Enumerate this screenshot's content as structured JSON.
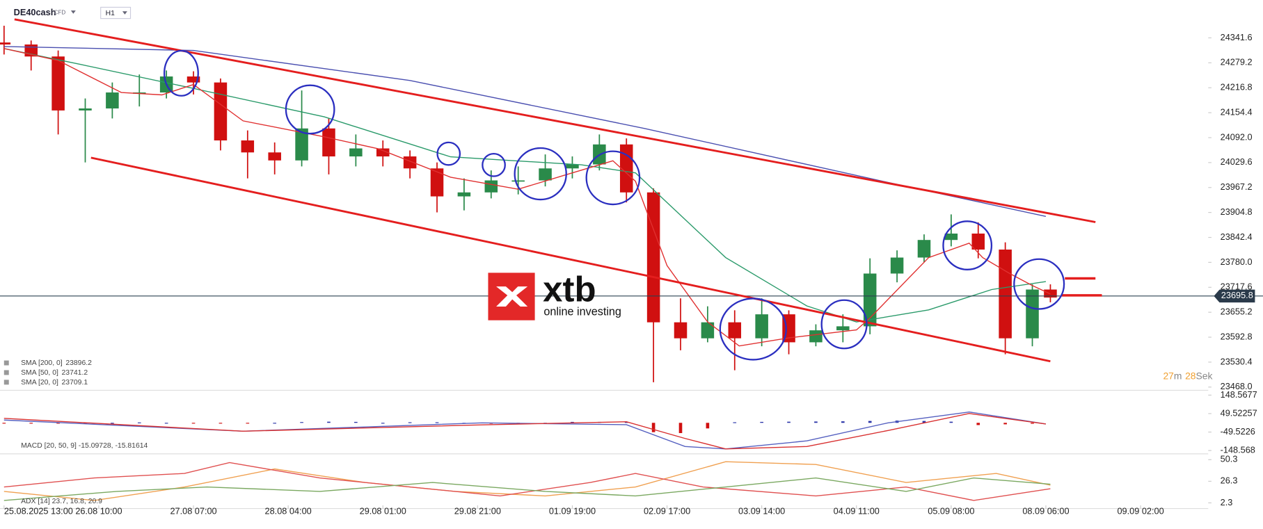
{
  "header": {
    "symbol": "DE40cash",
    "instrument_type": "CFD",
    "timeframe": "H1"
  },
  "logo": {
    "brand": "xtb",
    "tagline": "online investing"
  },
  "countdown": {
    "minutes": 27,
    "minutes_unit": "m",
    "seconds": 28,
    "seconds_unit": "Sek"
  },
  "chart_data": [
    {
      "type": "candlestick",
      "x": [
        0,
        6,
        12,
        18,
        24,
        30,
        36,
        42,
        48,
        54,
        60,
        66,
        72,
        78,
        84,
        90,
        96,
        102,
        108,
        114,
        120,
        126,
        132,
        138,
        144,
        150,
        156,
        162,
        168,
        174,
        180,
        186,
        192,
        198,
        204,
        210,
        216,
        222,
        228,
        232
      ],
      "open": [
        24330,
        24325,
        24295,
        24160,
        24165,
        24205,
        24205,
        24245,
        24230,
        24085,
        24055,
        24035,
        24115,
        24045,
        24065,
        24045,
        24015,
        23945,
        23955,
        23985,
        23985,
        24015,
        24025,
        24075,
        23955,
        23630,
        23590,
        23630,
        23590,
        23650,
        23580,
        23610,
        23620,
        23752,
        23792,
        23836,
        23852,
        23812,
        23590,
        23712
      ],
      "high": [
        24372,
        24335,
        24310,
        24190,
        24230,
        24250,
        24260,
        24258,
        24240,
        24110,
        24080,
        24210,
        24140,
        24100,
        24085,
        24060,
        24030,
        23990,
        24010,
        24020,
        24050,
        24045,
        24100,
        24090,
        23965,
        23690,
        23670,
        23660,
        23690,
        23660,
        23625,
        23650,
        23790,
        23810,
        23850,
        23900,
        23880,
        23830,
        23725,
        23725
      ],
      "low": [
        24300,
        24260,
        24100,
        24030,
        24140,
        24170,
        24190,
        24200,
        24060,
        23990,
        24000,
        24020,
        24000,
        24020,
        24020,
        23990,
        23905,
        23910,
        23940,
        23950,
        23970,
        23990,
        24010,
        23930,
        23480,
        23560,
        23580,
        23510,
        23570,
        23550,
        23570,
        23580,
        23600,
        23730,
        23780,
        23820,
        23790,
        23550,
        23570,
        23680
      ],
      "close": [
        24325,
        24295,
        24160,
        24165,
        24205,
        24205,
        24245,
        24230,
        24085,
        24055,
        24035,
        24115,
        24045,
        24065,
        24045,
        24015,
        23945,
        23955,
        23985,
        23985,
        24015,
        24025,
        24075,
        23955,
        23630,
        23590,
        23630,
        23590,
        23650,
        23580,
        23610,
        23620,
        23752,
        23792,
        23836,
        23852,
        23812,
        23590,
        23712,
        23692
      ],
      "up_color": "#2a8a4a",
      "down_color": "#d01010",
      "last_price": 23695.8,
      "xlim": [
        -0.9,
        267
      ],
      "ylim": [
        23460,
        24392
      ],
      "yticks": [
        24341.6,
        24279.2,
        24216.8,
        24154.4,
        {
          "value": 24092.0,
          "label": "24092.0"
        },
        24029.6,
        23967.2,
        23904.8,
        23842.4,
        {
          "value": 23780.0,
          "label": "23780.0"
        },
        23717.6,
        23655.2,
        23592.8,
        23530.4,
        {
          "value": 23468.0,
          "label": "23468.0"
        }
      ],
      "xticks": [
        {
          "value": 0,
          "label": "25.08.2025  13:00"
        },
        {
          "value": 21,
          "label": "26.08  10:00"
        },
        {
          "value": 42,
          "label": "27.08  07:00"
        },
        {
          "value": 63,
          "label": "28.08  04:00"
        },
        {
          "value": 84,
          "label": "29.08  01:00"
        },
        {
          "value": 105,
          "label": "29.08  21:00"
        },
        {
          "value": 126,
          "label": "01.09  19:00"
        },
        {
          "value": 147,
          "label": "02.09  17:00"
        },
        {
          "value": 168,
          "label": "03.09  14:00"
        },
        {
          "value": 189,
          "label": "04.09  11:00"
        },
        {
          "value": 210,
          "label": "05.09  08:00"
        },
        {
          "value": 231,
          "label": "08.09  06:00"
        },
        {
          "value": 252,
          "label": "09.09  02:00"
        }
      ],
      "series": [
        {
          "name": "SMA [200,  0]",
          "last": 23896.2,
          "color": "#4a4fb0",
          "x": [
            0,
            42,
            90,
            142,
            196,
            231
          ],
          "values": [
            24320,
            24310,
            24235,
            24115,
            23980,
            23895
          ]
        },
        {
          "name": "SMA [50,  0]",
          "last": 23741.2,
          "color": "#2a9a6a",
          "x": [
            0,
            17,
            42,
            71,
            99,
            128,
            140,
            160,
            178,
            189,
            205,
            219,
            231
          ],
          "values": [
            24315,
            24275,
            24215,
            24144,
            24044,
            24024,
            24004,
            23792,
            23671,
            23631,
            23661,
            23712,
            23732
          ]
        },
        {
          "name": "SMA [20,  0]",
          "last": 23709.1,
          "color": "#e03030",
          "x": [
            0,
            12,
            26,
            35,
            42,
            53,
            71,
            83,
            99,
            114,
            124,
            135,
            140,
            147,
            156,
            163,
            174,
            189,
            192,
            205,
            214,
            217,
            223,
            228,
            232
          ],
          "values": [
            24315,
            24285,
            24205,
            24199,
            24225,
            24134,
            24094,
            24064,
            23993,
            23963,
            23997,
            24034,
            23983,
            23772,
            23631,
            23571,
            23591,
            23611,
            23641,
            23792,
            23828,
            23792,
            23752,
            23722,
            23701
          ]
        }
      ]
    },
    {
      "type": "macd",
      "label": "MACD [20, 50, 9]  -15.09728,  -15.81614",
      "ylim": [
        -162,
        166
      ],
      "yticks": [
        148.5677,
        49.52257,
        -49.5226,
        -148.568
      ],
      "series": [
        {
          "color": "#5560c0",
          "x": [
            0,
            53,
            106,
            138,
            151,
            160,
            178,
            196,
            214,
            231
          ],
          "values": [
            15,
            -45,
            0,
            -10,
            -127,
            -140,
            -97,
            0,
            58,
            -6
          ]
        },
        {
          "color": "#d83030",
          "x": [
            0,
            53,
            106,
            138,
            151,
            160,
            178,
            196,
            214,
            231
          ],
          "values": [
            24,
            -45,
            -11,
            6,
            -84,
            -140,
            -127,
            -41,
            50,
            -6
          ]
        }
      ],
      "histogram": {
        "x": [
          0,
          6,
          12,
          18,
          24,
          30,
          36,
          42,
          48,
          54,
          60,
          66,
          72,
          78,
          84,
          90,
          96,
          102,
          108,
          114,
          120,
          126,
          132,
          138,
          144,
          150,
          156,
          162,
          168,
          174,
          180,
          186,
          192,
          198,
          204,
          210,
          216,
          222,
          228
        ],
        "values": [
          -4,
          -4,
          -4,
          -3,
          0,
          2,
          0,
          -4,
          -4,
          -3,
          0,
          4,
          6,
          5,
          0,
          3,
          3,
          0,
          -5,
          -3,
          0,
          5,
          5,
          4,
          -50,
          -55,
          -30,
          3,
          5,
          6,
          7,
          8,
          10,
          12,
          10,
          6,
          -12,
          -8,
          -5
        ],
        "up_color": "#2a35a8",
        "down_color": "#d01010"
      }
    },
    {
      "type": "adx",
      "label": "ADX [14]  23.7,  16.8,  20.9",
      "ylim": [
        -4,
        55
      ],
      "yticks": [
        50.3,
        26.3,
        2.3
      ],
      "series": [
        {
          "color": "#f0a050",
          "x": [
            0,
            20,
            40,
            60,
            80,
            100,
            120,
            140,
            160,
            180,
            200,
            220,
            232
          ],
          "values": [
            15,
            5,
            20,
            40,
            25,
            15,
            10,
            20,
            48,
            45,
            25,
            35,
            22
          ]
        },
        {
          "color": "#e05050",
          "x": [
            0,
            20,
            40,
            50,
            70,
            90,
            110,
            130,
            140,
            155,
            180,
            200,
            215,
            232
          ],
          "values": [
            20,
            30,
            35,
            47,
            30,
            20,
            10,
            25,
            35,
            20,
            10,
            20,
            5,
            18
          ]
        },
        {
          "color": "#7aa860",
          "x": [
            0,
            25,
            45,
            70,
            95,
            120,
            140,
            160,
            180,
            200,
            215,
            232
          ],
          "values": [
            5,
            15,
            20,
            15,
            25,
            15,
            10,
            20,
            30,
            15,
            30,
            23
          ]
        }
      ]
    }
  ]
}
